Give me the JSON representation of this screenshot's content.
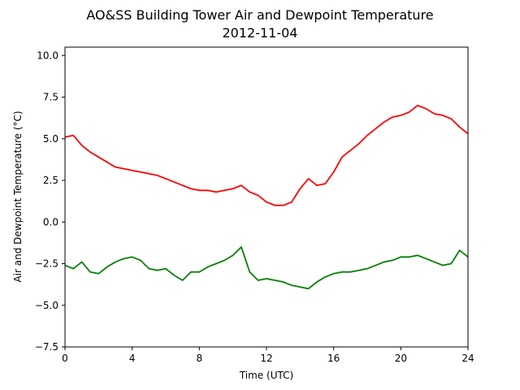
{
  "chart_data": {
    "type": "line",
    "title": "AO&SS Building Tower Air and Dewpoint Temperature",
    "subtitle": "2012-11-04",
    "xlabel": "Time (UTC)",
    "ylabel": "Air and Dewpoint Temperature (°C)",
    "xlim": [
      0,
      24
    ],
    "ylim": [
      -7.5,
      10.5
    ],
    "xticks": [
      0,
      4,
      8,
      12,
      16,
      20,
      24
    ],
    "yticks": [
      -7.5,
      -5.0,
      -2.5,
      0.0,
      2.5,
      5.0,
      7.5,
      10.0
    ],
    "xtick_labels": [
      "0",
      "4",
      "8",
      "12",
      "16",
      "20",
      "24"
    ],
    "ytick_labels": [
      "−7.5",
      "−5.0",
      "−2.5",
      "0.0",
      "2.5",
      "5.0",
      "7.5",
      "10.0"
    ],
    "grid": false,
    "series": [
      {
        "color": "#ff0000",
        "x": [
          0,
          0.5,
          1,
          1.5,
          2,
          2.5,
          3,
          3.5,
          4,
          4.5,
          5,
          5.5,
          6,
          6.5,
          7,
          7.5,
          8,
          8.5,
          9,
          9.5,
          10,
          10.5,
          11,
          11.5,
          12,
          12.5,
          13,
          13.5,
          14,
          14.5,
          15,
          15.5,
          16,
          16.5,
          17,
          17.5,
          18,
          18.5,
          19,
          19.5,
          20,
          20.5,
          21,
          21.5,
          22,
          22.5,
          23,
          23.5,
          24
        ],
        "y": [
          5.1,
          5.2,
          4.6,
          4.2,
          3.9,
          3.6,
          3.3,
          3.2,
          3.1,
          3.0,
          2.9,
          2.8,
          2.6,
          2.4,
          2.2,
          2.0,
          1.9,
          1.9,
          1.8,
          1.9,
          2.0,
          2.2,
          1.8,
          1.6,
          1.2,
          1.0,
          1.0,
          1.2,
          2.0,
          2.6,
          2.2,
          2.3,
          3.0,
          3.9,
          4.3,
          4.7,
          5.2,
          5.6,
          6.0,
          6.3,
          6.4,
          6.6,
          7.0,
          6.8,
          6.5,
          6.4,
          6.2,
          5.7,
          5.3
        ]
      },
      {
        "color": "#008000",
        "x": [
          0,
          0.5,
          1,
          1.5,
          2,
          2.5,
          3,
          3.5,
          4,
          4.5,
          5,
          5.5,
          6,
          6.5,
          7,
          7.5,
          8,
          8.5,
          9,
          9.5,
          10,
          10.5,
          11,
          11.5,
          12,
          12.5,
          13,
          13.5,
          14,
          14.5,
          15,
          15.5,
          16,
          16.5,
          17,
          17.5,
          18,
          18.5,
          19,
          19.5,
          20,
          20.5,
          21,
          21.5,
          22,
          22.5,
          23,
          23.5,
          24
        ],
        "y": [
          -2.6,
          -2.8,
          -2.4,
          -3.0,
          -3.1,
          -2.7,
          -2.4,
          -2.2,
          -2.1,
          -2.3,
          -2.8,
          -2.9,
          -2.8,
          -3.2,
          -3.5,
          -3.0,
          -3.0,
          -2.7,
          -2.5,
          -2.3,
          -2.0,
          -1.5,
          -3.0,
          -3.5,
          -3.4,
          -3.5,
          -3.6,
          -3.8,
          -3.9,
          -4.0,
          -3.6,
          -3.3,
          -3.1,
          -3.0,
          -3.0,
          -2.9,
          -2.8,
          -2.6,
          -2.4,
          -2.3,
          -2.1,
          -2.1,
          -2.0,
          -2.2,
          -2.4,
          -2.6,
          -2.5,
          -1.7,
          -2.1
        ]
      }
    ]
  }
}
